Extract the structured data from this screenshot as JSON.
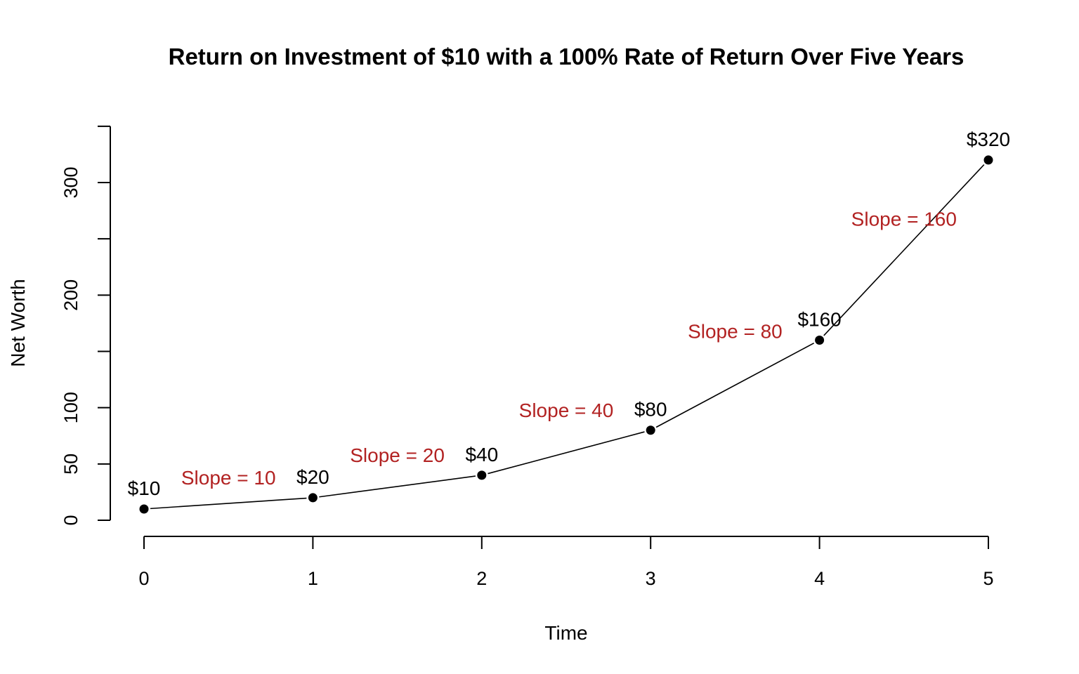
{
  "chart_data": {
    "type": "line",
    "title": "Return on Investment of $10 with a 100% Rate of Return Over Five Years",
    "xlabel": "Time",
    "ylabel": "Net Worth",
    "x": [
      0,
      1,
      2,
      3,
      4,
      5
    ],
    "series": [
      {
        "values": [
          10,
          20,
          40,
          80,
          160,
          320
        ]
      }
    ],
    "point_labels": [
      "$10",
      "$20",
      "$40",
      "$80",
      "$160",
      "$320"
    ],
    "xticks": [
      0,
      1,
      2,
      3,
      4,
      5
    ],
    "xtick_labels": [
      "0",
      "1",
      "2",
      "3",
      "4",
      "5"
    ],
    "yticks": [
      0,
      50,
      100,
      150,
      200,
      250,
      300,
      350
    ],
    "ytick_labels": [
      "0",
      "50",
      "100",
      "",
      "200",
      "",
      "300",
      ""
    ],
    "xlim": [
      0,
      5
    ],
    "ylim": [
      0,
      350
    ],
    "grid": false,
    "annotations": [
      {
        "text": "Slope = 10",
        "x": 0.5,
        "y": 38
      },
      {
        "text": "Slope = 20",
        "x": 1.5,
        "y": 58
      },
      {
        "text": "Slope = 40",
        "x": 2.5,
        "y": 98
      },
      {
        "text": "Slope = 80",
        "x": 3.5,
        "y": 168
      },
      {
        "text": "Slope = 160",
        "x": 4.5,
        "y": 268
      }
    ],
    "colors": {
      "line": "#000000",
      "points": "#000000",
      "annotations": "#b22222"
    }
  }
}
